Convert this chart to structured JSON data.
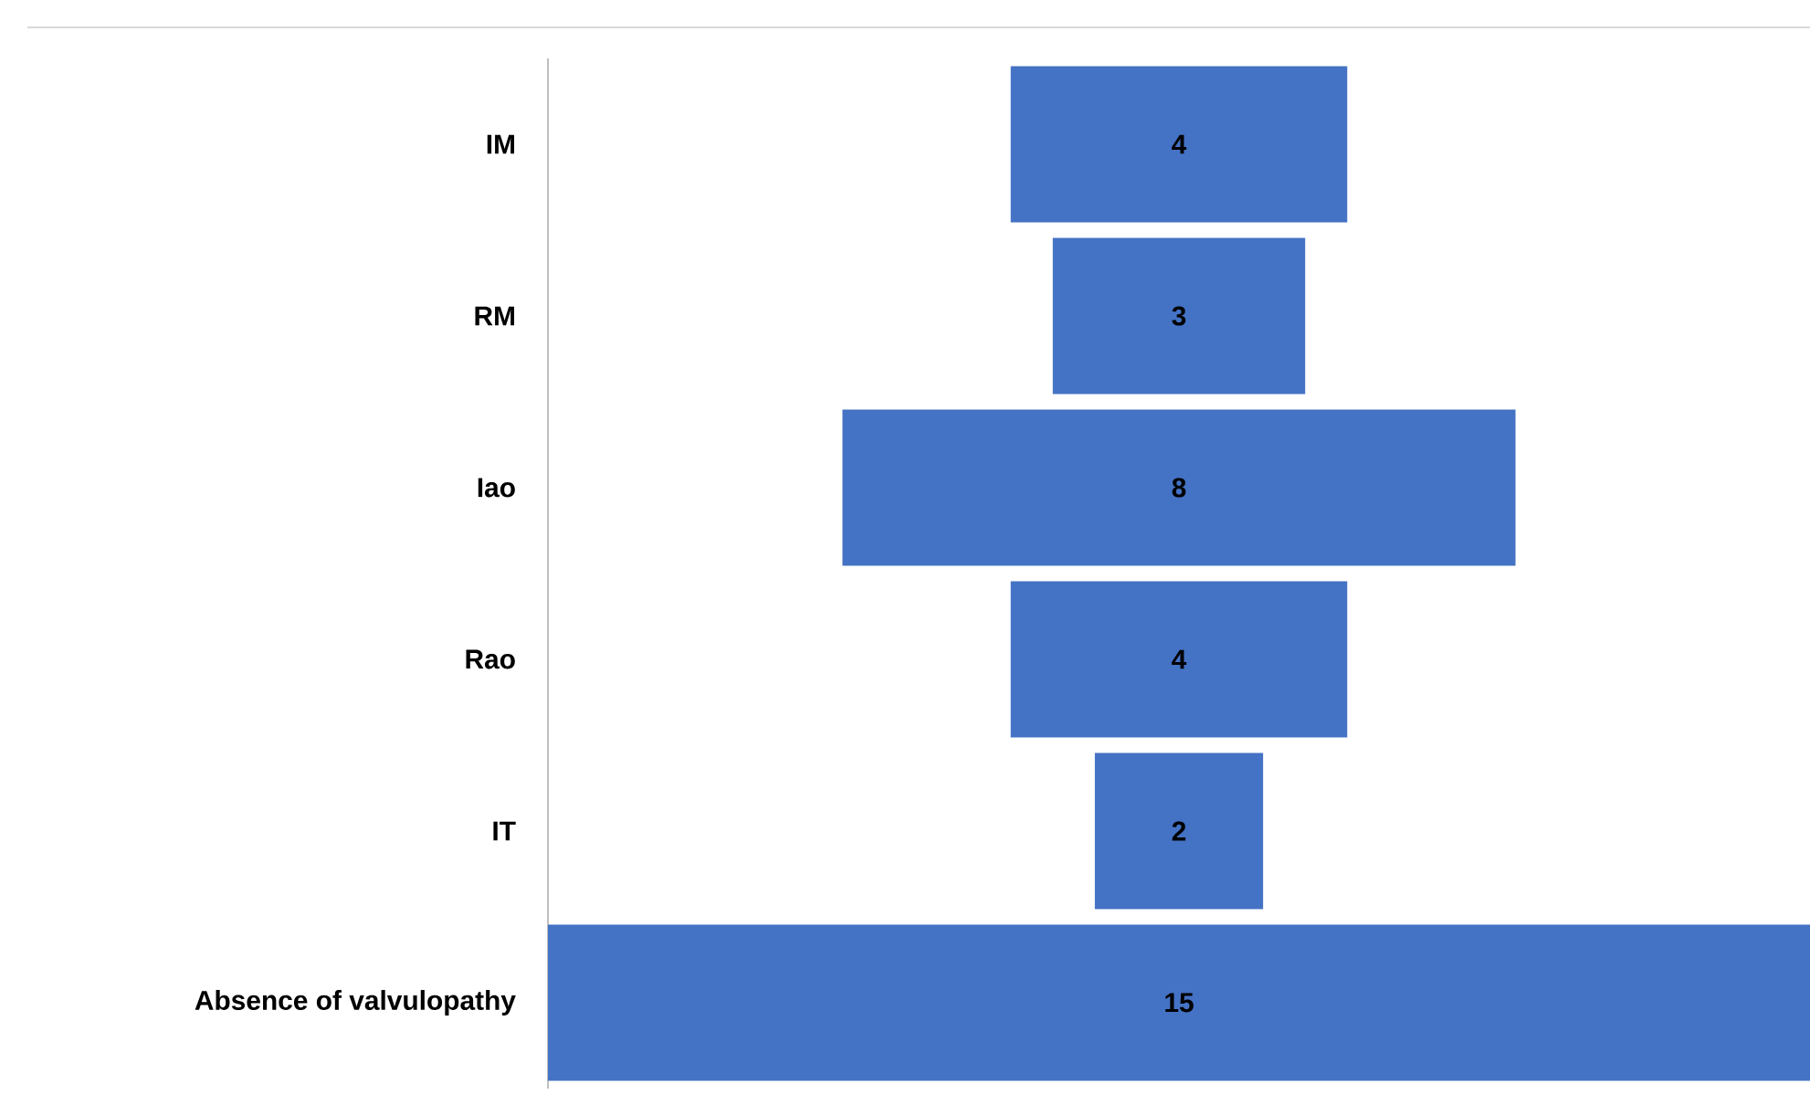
{
  "chart_data": {
    "type": "other",
    "categories": [
      "IM",
      "RM",
      "Iao",
      "Rao",
      "IT",
      "Absence of valvulopathy"
    ],
    "values": [
      4,
      3,
      8,
      4,
      2,
      15
    ],
    "color": "#4472c4",
    "data_labels": true
  }
}
